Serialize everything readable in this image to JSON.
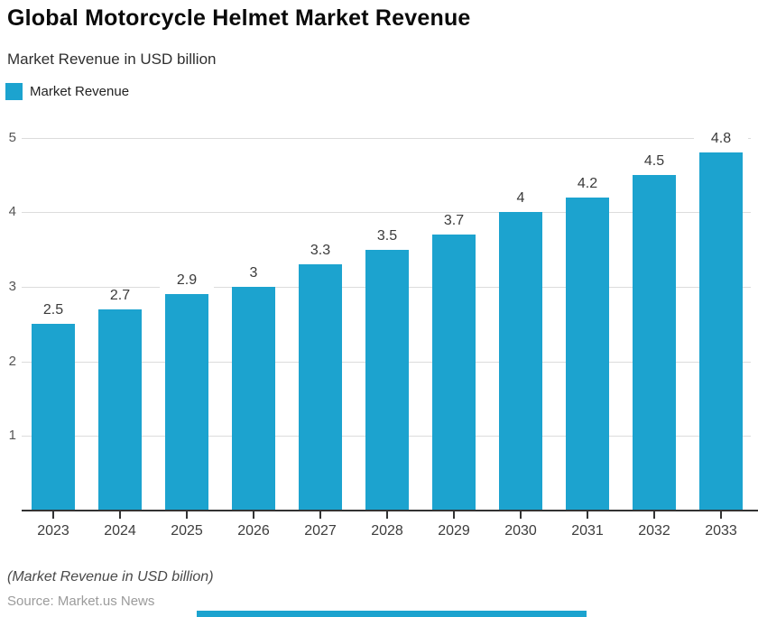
{
  "header": {
    "title": "Global Motorcycle Helmet Market Revenue",
    "subtitle": "Market Revenue in USD billion"
  },
  "legend": {
    "label": "Market Revenue"
  },
  "chart_data": {
    "type": "bar",
    "title": "Global Motorcycle Helmet Market Revenue",
    "subtitle": "Market Revenue in USD billion",
    "categories": [
      "2023",
      "2024",
      "2025",
      "2026",
      "2027",
      "2028",
      "2029",
      "2030",
      "2031",
      "2032",
      "2033"
    ],
    "series": [
      {
        "name": "Market Revenue",
        "values": [
          2.5,
          2.7,
          2.9,
          3,
          3.3,
          3.5,
          3.7,
          4,
          4.2,
          4.5,
          4.8
        ]
      }
    ],
    "xlabel": "",
    "ylabel": "",
    "ylim": [
      0,
      5
    ],
    "yticks": [
      1,
      2,
      3,
      4,
      5
    ],
    "grid": true,
    "legend_position": "top-left",
    "data_labels": [
      "2.5",
      "2.7",
      "2.9",
      "3",
      "3.3",
      "3.5",
      "3.7",
      "4",
      "4.2",
      "4.5",
      "4.8"
    ]
  },
  "footer": {
    "note": "(Market Revenue in USD billion)",
    "source": "Source: Market.us News"
  },
  "colors": {
    "bar": "#1CA3CF",
    "axis": "#333333",
    "grid": "#dcdcdc",
    "bottom_bar": "#1CA3CF"
  }
}
